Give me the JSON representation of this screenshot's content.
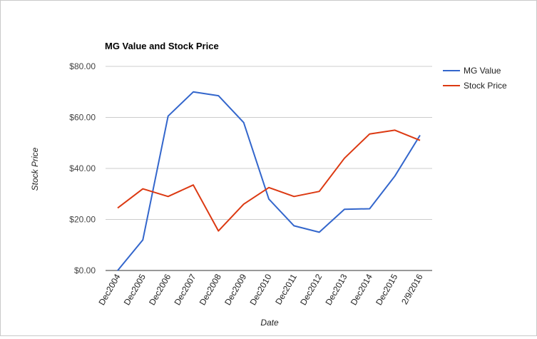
{
  "chart_data": {
    "type": "line",
    "title": "MG Value and Stock Price",
    "xlabel": "Date",
    "ylabel": "Stock Price",
    "categories": [
      "Dec2004",
      "Dec2005",
      "Dec2006",
      "Dec2007",
      "Dec2008",
      "Dec2009",
      "Dec2010",
      "Dec2011",
      "Dec2012",
      "Dec2013",
      "Dec2014",
      "Dec2015",
      "2/9/2016"
    ],
    "series": [
      {
        "name": "MG Value",
        "color": "#3366cc",
        "values": [
          0,
          12,
          60.5,
          70,
          68.5,
          58,
          28,
          17.5,
          15,
          24,
          24.2,
          37,
          53
        ]
      },
      {
        "name": "Stock Price",
        "color": "#dc3912",
        "values": [
          24.5,
          32,
          29,
          33.5,
          15.5,
          26,
          32.5,
          29,
          31,
          44,
          53.5,
          55,
          51
        ]
      }
    ],
    "ylim": [
      0,
      80
    ],
    "yticks": [
      "$0.00",
      "$20.00",
      "$40.00",
      "$60.00",
      "$80.00"
    ],
    "ytick_values": [
      0,
      20,
      40,
      60,
      80
    ],
    "grid": true,
    "legend_position": "right"
  }
}
